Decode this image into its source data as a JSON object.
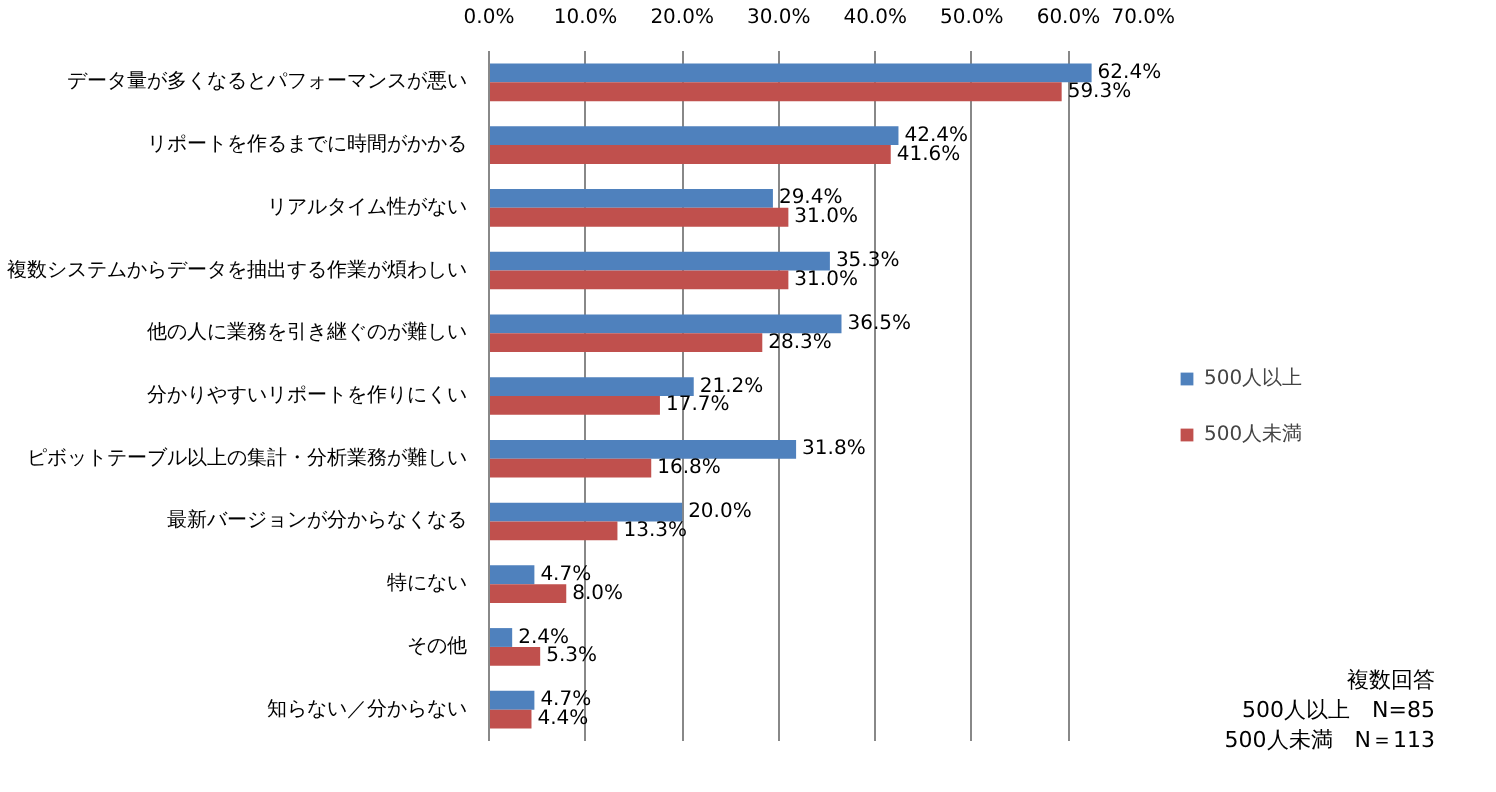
{
  "chart_data": {
    "type": "bar",
    "orientation": "horizontal",
    "categories": [
      "データ量が多くなるとパフォーマンスが悪い",
      "リポートを作るまでに時間がかかる",
      "リアルタイム性がない",
      "複数システムからデータを抽出する作業が煩わしい",
      "他の人に業務を引き継ぐのが難しい",
      "分かりやすいリポートを作りにくい",
      "ピボットテーブル以上の集計・分析業務が難しい",
      "最新バージョンが分からなくなる",
      "特にない",
      "その他",
      "知らない／分からない"
    ],
    "series": [
      {
        "name": "500人以上",
        "color": "#4f81bd",
        "values": [
          62.4,
          42.4,
          29.4,
          35.3,
          36.5,
          21.2,
          31.8,
          20.0,
          4.7,
          2.4,
          4.7
        ],
        "value_labels": [
          "62.4%",
          "42.4%",
          "29.4%",
          "35.3%",
          "36.5%",
          "21.2%",
          "31.8%",
          "20.0%",
          "4.7%",
          "2.4%",
          "4.7%"
        ]
      },
      {
        "name": "500人未満",
        "color": "#c0504d",
        "values": [
          59.3,
          41.6,
          31.0,
          31.0,
          28.3,
          17.7,
          16.8,
          13.3,
          8.0,
          5.3,
          4.4
        ],
        "value_labels": [
          "59.3%",
          "41.6%",
          "31.0%",
          "31.0%",
          "28.3%",
          "17.7%",
          "16.8%",
          "13.3%",
          "8.0%",
          "5.3%",
          "4.4%"
        ]
      }
    ],
    "xlim": [
      0,
      70
    ],
    "xticks": [
      {
        "value": 0,
        "label": "0.0%"
      },
      {
        "value": 10,
        "label": "10.0%"
      },
      {
        "value": 20,
        "label": "20.0%"
      },
      {
        "value": 30,
        "label": "30.0%"
      },
      {
        "value": 40,
        "label": "40.0%"
      },
      {
        "value": 50,
        "label": "50.0%"
      },
      {
        "value": 60,
        "label": "60.0%"
      },
      {
        "value": 70,
        "label": "70.0%"
      }
    ],
    "grid": "x",
    "legend": "right",
    "annotations": [
      "複数回答",
      "500人以上　N=85",
      "500人未満　N＝113"
    ]
  }
}
